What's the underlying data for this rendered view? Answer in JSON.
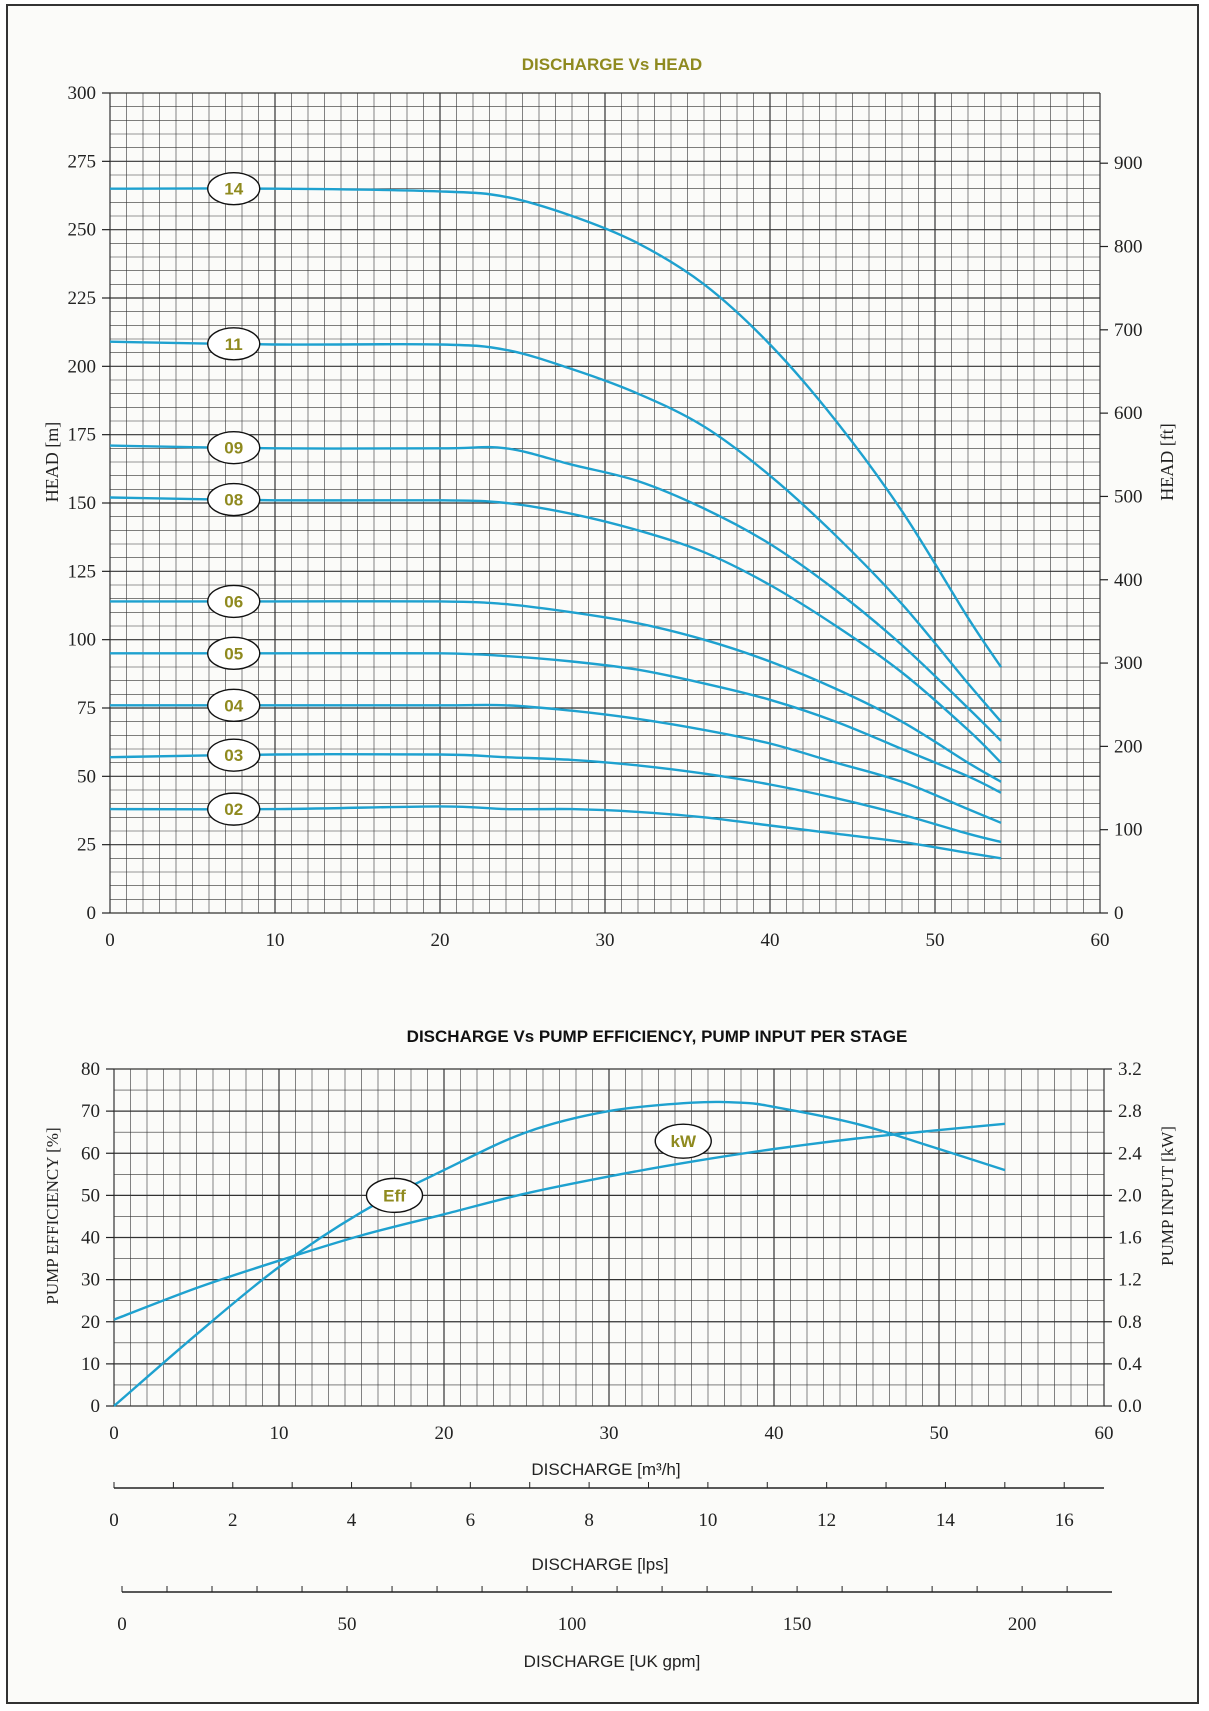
{
  "chart_data": [
    {
      "type": "line",
      "title": "DISCHARGE Vs HEAD",
      "xlabel": "",
      "ylabel": "HEAD [m]",
      "y2label": "HEAD [ft]",
      "xlim": [
        0,
        60
      ],
      "ylim": [
        0,
        300
      ],
      "y2lim": [
        0,
        984.25
      ],
      "xticks": [
        "0",
        "10",
        "20",
        "30",
        "40",
        "50",
        "60"
      ],
      "yticks": [
        "0",
        "25",
        "50",
        "75",
        "100",
        "125",
        "150",
        "175",
        "200",
        "225",
        "250",
        "275",
        "300"
      ],
      "y2ticks": [
        "0",
        "100",
        "200",
        "300",
        "400",
        "500",
        "600",
        "700",
        "800",
        "900"
      ],
      "grid": true,
      "series": [
        {
          "name": "14",
          "label_at": 7.5,
          "x": [
            0,
            10,
            20,
            24,
            28,
            32,
            36,
            40,
            44,
            48,
            52,
            54
          ],
          "y": [
            265,
            265,
            264,
            262,
            255,
            245,
            230,
            208,
            180,
            147,
            108,
            90
          ]
        },
        {
          "name": "11",
          "label_at": 7.5,
          "x": [
            0,
            10,
            20,
            24,
            28,
            32,
            36,
            40,
            44,
            48,
            52,
            54
          ],
          "y": [
            209,
            208,
            208,
            206,
            199,
            190,
            178,
            160,
            138,
            113,
            84,
            70
          ]
        },
        {
          "name": "09",
          "label_at": 7.5,
          "x": [
            0,
            10,
            20,
            24,
            28,
            32,
            36,
            40,
            44,
            48,
            52,
            54
          ],
          "y": [
            171,
            170,
            170,
            170,
            164,
            158,
            148,
            135,
            118,
            98,
            75,
            63
          ]
        },
        {
          "name": "08",
          "label_at": 7.5,
          "x": [
            0,
            10,
            20,
            24,
            28,
            32,
            36,
            40,
            44,
            48,
            52,
            54
          ],
          "y": [
            152,
            151,
            151,
            150,
            146,
            140,
            132,
            120,
            105,
            88,
            67,
            55
          ]
        },
        {
          "name": "06",
          "label_at": 7.5,
          "x": [
            0,
            10,
            20,
            24,
            28,
            32,
            36,
            40,
            44,
            48,
            52,
            54
          ],
          "y": [
            114,
            114,
            114,
            113,
            110,
            106,
            100,
            92,
            82,
            70,
            55,
            48
          ]
        },
        {
          "name": "05",
          "label_at": 7.5,
          "x": [
            0,
            10,
            20,
            24,
            28,
            32,
            36,
            40,
            44,
            48,
            52,
            54
          ],
          "y": [
            95,
            95,
            95,
            94,
            92,
            89,
            84,
            78,
            70,
            60,
            50,
            44
          ]
        },
        {
          "name": "04",
          "label_at": 7.5,
          "x": [
            0,
            10,
            20,
            24,
            28,
            32,
            36,
            40,
            44,
            48,
            52,
            54
          ],
          "y": [
            76,
            76,
            76,
            76,
            74,
            71,
            67,
            62,
            55,
            48,
            38,
            33
          ]
        },
        {
          "name": "03",
          "label_at": 7.5,
          "x": [
            0,
            10,
            20,
            24,
            28,
            32,
            36,
            40,
            44,
            48,
            52,
            54
          ],
          "y": [
            57,
            58,
            58,
            57,
            56,
            54,
            51,
            47,
            42,
            36,
            29,
            26
          ]
        },
        {
          "name": "02",
          "label_at": 7.5,
          "x": [
            0,
            10,
            20,
            24,
            28,
            32,
            36,
            40,
            44,
            48,
            52,
            54
          ],
          "y": [
            38,
            38,
            39,
            38,
            38,
            37,
            35,
            32,
            29,
            26,
            22,
            20
          ]
        }
      ]
    },
    {
      "type": "line",
      "title": "DISCHARGE Vs PUMP EFFICIENCY, PUMP INPUT PER STAGE",
      "xlabel": "DISCHARGE [m³/h]",
      "ylabel": "PUMP EFFICIENCY [%]",
      "y2label": "PUMP INPUT [kW]",
      "xlim": [
        0,
        60
      ],
      "ylim": [
        0,
        80
      ],
      "y2lim": [
        0,
        3.2
      ],
      "xticks": [
        "0",
        "10",
        "20",
        "30",
        "40",
        "50",
        "60"
      ],
      "yticks": [
        "0",
        "10",
        "20",
        "30",
        "40",
        "50",
        "60",
        "70",
        "80"
      ],
      "y2ticks": [
        "0.0",
        "0.4",
        "0.8",
        "1.2",
        "1.6",
        "2.0",
        "2.4",
        "2.8",
        "3.2"
      ],
      "grid": true,
      "series": [
        {
          "name": "Eff",
          "axis": "left",
          "label_at": 17,
          "x": [
            0,
            5,
            10,
            15,
            20,
            25,
            30,
            35,
            38,
            40,
            45,
            50,
            54
          ],
          "y": [
            0,
            17,
            33,
            46,
            56,
            65,
            70,
            72,
            72,
            71,
            67,
            61,
            56
          ]
        },
        {
          "name": "kW",
          "axis": "right",
          "label_at": 34.5,
          "x": [
            0,
            5,
            10,
            15,
            20,
            25,
            30,
            35,
            40,
            45,
            50,
            54
          ],
          "y": [
            0.82,
            1.12,
            1.38,
            1.62,
            1.82,
            2.02,
            2.18,
            2.32,
            2.44,
            2.54,
            2.62,
            2.68
          ]
        }
      ]
    }
  ],
  "secondary_axes": [
    {
      "label": "DISCHARGE [lps]",
      "max": 16.67,
      "ticks": [
        "0",
        "2",
        "4",
        "6",
        "8",
        "10",
        "12",
        "14",
        "16"
      ]
    },
    {
      "label": "DISCHARGE [UK gpm]",
      "max": 219.97,
      "ticks": [
        "0",
        "50",
        "100",
        "150",
        "200"
      ]
    }
  ],
  "colors": {
    "curve": "#1ea1cf",
    "title": "#8f8a1f",
    "label_text": "#8f8a1f",
    "grid": "#333333",
    "axis_text": "#222222"
  }
}
